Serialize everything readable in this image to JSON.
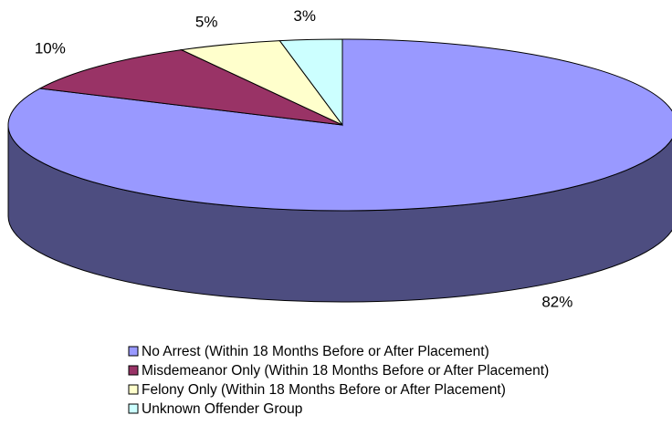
{
  "chart_data": {
    "type": "pie3d",
    "series": [
      {
        "name": "No Arrest (Within 18 Months Before or After Placement)",
        "color": "#9999ff"
      },
      {
        "name": "Misdemeanor Only (Within 18 Months Before or After Placement)",
        "color": "#993366"
      },
      {
        "name": "Felony Only (Within 18 Months Before or After Placement)",
        "color": "#ffffcc"
      },
      {
        "name": "Unknown Offender Group",
        "color": "#ccffff"
      }
    ],
    "values": [
      82,
      10,
      5,
      3
    ],
    "value_labels": [
      "82%",
      "10%",
      "5%",
      "3%"
    ]
  }
}
